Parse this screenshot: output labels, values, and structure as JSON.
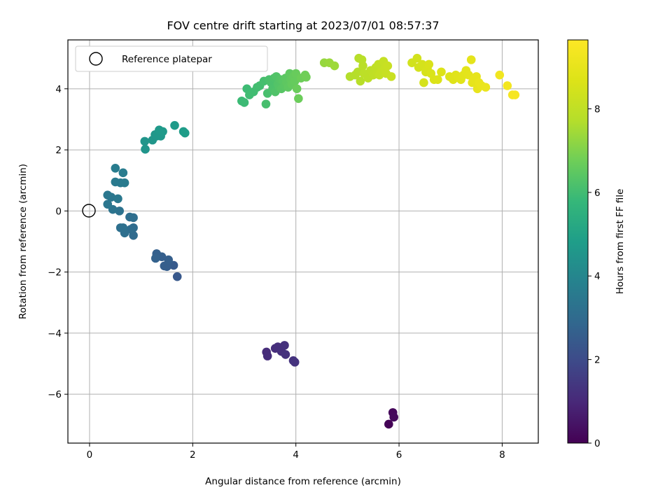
{
  "chart_data": {
    "type": "scatter",
    "title": "FOV centre drift starting at 2023/07/01 08:57:37",
    "xlabel": "Angular distance from reference (arcmin)",
    "ylabel": "Rotation from reference (arcmin)",
    "xlim": [
      -0.42,
      8.7
    ],
    "ylim": [
      -7.6,
      5.6
    ],
    "xticks": [
      0,
      2,
      4,
      6,
      8
    ],
    "yticks": [
      -6,
      -4,
      -2,
      0,
      2,
      4
    ],
    "xtick_labels": [
      "0",
      "2",
      "4",
      "6",
      "8"
    ],
    "ytick_labels": [
      "−6",
      "−4",
      "−2",
      "0",
      "2",
      "4"
    ],
    "grid": true,
    "legend": {
      "position": "top-left",
      "entries": [
        "Reference platepar"
      ]
    },
    "reference_point": {
      "x": 0,
      "y": 0,
      "label": "Reference platepar"
    },
    "colorbar": {
      "label": "Hours from first FF file",
      "min": 0,
      "max": 9.65,
      "ticks": [
        0,
        2,
        4,
        6,
        8
      ],
      "tick_labels": [
        "0",
        "2",
        "4",
        "6",
        "8"
      ],
      "colormap": "viridis"
    },
    "points": [
      [
        5.8,
        -6.98,
        0.05
      ],
      [
        5.88,
        -6.6,
        0.15
      ],
      [
        5.9,
        -6.75,
        0.2
      ],
      [
        3.43,
        -4.62,
        1.1
      ],
      [
        3.45,
        -4.75,
        1.12
      ],
      [
        3.6,
        -4.5,
        1.15
      ],
      [
        3.65,
        -4.45,
        1.18
      ],
      [
        3.72,
        -4.6,
        1.2
      ],
      [
        3.78,
        -4.4,
        1.22
      ],
      [
        3.8,
        -4.7,
        1.25
      ],
      [
        3.95,
        -4.9,
        1.28
      ],
      [
        3.98,
        -4.95,
        1.3
      ],
      [
        1.7,
        -2.15,
        2.4
      ],
      [
        1.63,
        -1.78,
        2.45
      ],
      [
        1.55,
        -1.75,
        2.5
      ],
      [
        1.5,
        -1.82,
        2.55
      ],
      [
        1.45,
        -1.8,
        2.58
      ],
      [
        1.53,
        -1.6,
        2.6
      ],
      [
        1.4,
        -1.5,
        2.62
      ],
      [
        1.3,
        -1.4,
        2.65
      ],
      [
        1.28,
        -1.55,
        2.7
      ],
      [
        0.85,
        -0.8,
        3.0
      ],
      [
        0.85,
        -0.55,
        3.05
      ],
      [
        0.8,
        -0.6,
        3.08
      ],
      [
        0.85,
        -0.22,
        3.1
      ],
      [
        0.78,
        -0.2,
        3.12
      ],
      [
        0.68,
        -0.72,
        3.15
      ],
      [
        0.65,
        -0.55,
        3.18
      ],
      [
        0.6,
        -0.55,
        3.2
      ],
      [
        0.58,
        0.0,
        3.25
      ],
      [
        0.45,
        0.05,
        3.35
      ],
      [
        0.35,
        0.22,
        3.4
      ],
      [
        0.42,
        0.45,
        3.42
      ],
      [
        0.35,
        0.52,
        3.45
      ],
      [
        0.55,
        0.4,
        3.5
      ],
      [
        0.5,
        0.95,
        3.55
      ],
      [
        0.6,
        0.92,
        3.58
      ],
      [
        0.68,
        0.92,
        3.6
      ],
      [
        0.65,
        1.25,
        3.62
      ],
      [
        0.5,
        1.4,
        3.65
      ],
      [
        1.08,
        2.02,
        4.5
      ],
      [
        1.07,
        2.28,
        4.52
      ],
      [
        1.22,
        2.32,
        4.55
      ],
      [
        1.27,
        2.5,
        4.58
      ],
      [
        1.3,
        2.45,
        4.6
      ],
      [
        1.38,
        2.45,
        4.62
      ],
      [
        1.35,
        2.65,
        4.65
      ],
      [
        1.42,
        2.6,
        4.68
      ],
      [
        1.65,
        2.8,
        4.72
      ],
      [
        1.82,
        2.6,
        4.75
      ],
      [
        1.85,
        2.55,
        4.78
      ],
      [
        2.95,
        3.6,
        5.9
      ],
      [
        3.0,
        3.55,
        5.92
      ],
      [
        3.05,
        4.0,
        5.95
      ],
      [
        3.1,
        3.8,
        5.98
      ],
      [
        3.18,
        3.9,
        6.0
      ],
      [
        3.25,
        4.05,
        6.02
      ],
      [
        3.3,
        4.1,
        6.05
      ],
      [
        3.38,
        4.25,
        6.08
      ],
      [
        3.42,
        3.5,
        6.1
      ],
      [
        3.45,
        3.85,
        6.12
      ],
      [
        3.48,
        4.3,
        6.15
      ],
      [
        3.52,
        4.2,
        6.18
      ],
      [
        3.55,
        4.0,
        6.2
      ],
      [
        3.58,
        4.35,
        6.22
      ],
      [
        3.6,
        3.9,
        6.25
      ],
      [
        3.62,
        4.4,
        6.28
      ],
      [
        3.65,
        4.15,
        6.3
      ],
      [
        3.68,
        4.05,
        6.32
      ],
      [
        3.7,
        4.3,
        6.35
      ],
      [
        3.72,
        4.0,
        6.38
      ],
      [
        3.75,
        4.25,
        6.4
      ],
      [
        3.78,
        4.1,
        6.42
      ],
      [
        3.8,
        4.35,
        6.45
      ],
      [
        3.82,
        4.2,
        6.48
      ],
      [
        3.85,
        4.05,
        6.5
      ],
      [
        3.88,
        4.5,
        6.52
      ],
      [
        3.9,
        4.3,
        6.55
      ],
      [
        3.92,
        4.15,
        6.58
      ],
      [
        3.95,
        4.4,
        6.6
      ],
      [
        3.98,
        4.25,
        6.62
      ],
      [
        4.0,
        4.5,
        6.65
      ],
      [
        4.02,
        4.0,
        6.68
      ],
      [
        4.05,
        3.68,
        6.7
      ],
      [
        4.1,
        4.35,
        6.72
      ],
      [
        4.18,
        4.45,
        6.75
      ],
      [
        4.2,
        4.38,
        6.78
      ],
      [
        4.55,
        4.85,
        7.3
      ],
      [
        4.65,
        4.85,
        7.35
      ],
      [
        4.75,
        4.75,
        7.4
      ],
      [
        5.05,
        4.4,
        7.7
      ],
      [
        5.15,
        4.45,
        7.72
      ],
      [
        5.2,
        4.55,
        7.75
      ],
      [
        5.22,
        5.0,
        7.78
      ],
      [
        5.25,
        4.25,
        7.8
      ],
      [
        5.28,
        4.95,
        7.82
      ],
      [
        5.3,
        4.75,
        7.85
      ],
      [
        5.32,
        4.5,
        7.88
      ],
      [
        5.4,
        4.35,
        7.9
      ],
      [
        5.45,
        4.6,
        7.92
      ],
      [
        5.5,
        4.45,
        7.95
      ],
      [
        5.55,
        4.7,
        7.98
      ],
      [
        5.58,
        4.5,
        8.0
      ],
      [
        5.6,
        4.8,
        8.02
      ],
      [
        5.62,
        4.45,
        8.05
      ],
      [
        5.65,
        4.55,
        8.08
      ],
      [
        5.7,
        4.9,
        8.1
      ],
      [
        5.72,
        4.65,
        8.12
      ],
      [
        5.75,
        4.5,
        8.15
      ],
      [
        5.78,
        4.75,
        8.18
      ],
      [
        5.85,
        4.4,
        8.2
      ],
      [
        6.25,
        4.85,
        8.4
      ],
      [
        6.35,
        5.0,
        8.42
      ],
      [
        6.38,
        4.7,
        8.45
      ],
      [
        6.45,
        4.8,
        8.48
      ],
      [
        6.48,
        4.2,
        8.5
      ],
      [
        6.52,
        4.55,
        8.52
      ],
      [
        6.55,
        4.65,
        8.55
      ],
      [
        6.58,
        4.8,
        8.58
      ],
      [
        6.62,
        4.5,
        8.6
      ],
      [
        6.68,
        4.3,
        8.62
      ],
      [
        6.75,
        4.3,
        8.65
      ],
      [
        6.82,
        4.55,
        8.68
      ],
      [
        6.98,
        4.4,
        8.72
      ],
      [
        7.05,
        4.3,
        8.75
      ],
      [
        7.1,
        4.45,
        8.78
      ],
      [
        7.15,
        4.4,
        8.8
      ],
      [
        7.2,
        4.3,
        8.82
      ],
      [
        7.25,
        4.45,
        8.85
      ],
      [
        7.3,
        4.6,
        8.88
      ],
      [
        7.35,
        4.45,
        8.9
      ],
      [
        7.4,
        4.95,
        8.92
      ],
      [
        7.42,
        4.2,
        8.95
      ],
      [
        7.45,
        4.3,
        8.98
      ],
      [
        7.5,
        4.4,
        9.0
      ],
      [
        7.52,
        4.0,
        9.02
      ],
      [
        7.55,
        4.2,
        9.05
      ],
      [
        7.6,
        4.1,
        9.08
      ],
      [
        7.68,
        4.05,
        9.1
      ],
      [
        7.95,
        4.45,
        9.3
      ],
      [
        8.1,
        4.1,
        9.35
      ],
      [
        8.2,
        3.8,
        9.4
      ],
      [
        8.25,
        3.8,
        9.45
      ]
    ]
  }
}
